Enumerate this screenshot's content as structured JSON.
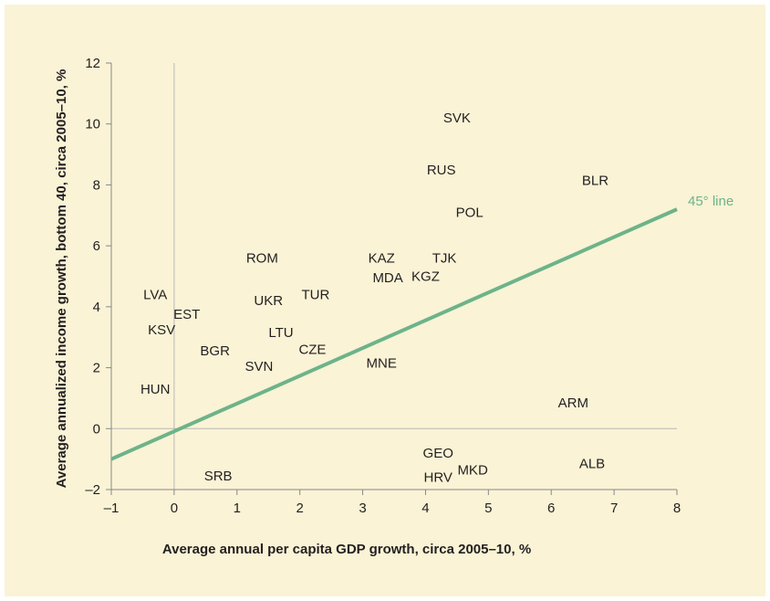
{
  "chart_data": {
    "type": "scatter",
    "xlabel": "Average annual per capita GDP growth, circa 2005–10, %",
    "ylabel": "Average annualized income growth, bottom 40, circa 2005–10, %",
    "xlim": [
      -1,
      8
    ],
    "ylim": [
      -2,
      12
    ],
    "x_ticks": [
      {
        "value": -1,
        "label": "–1"
      },
      {
        "value": 0,
        "label": "0"
      },
      {
        "value": 1,
        "label": "1"
      },
      {
        "value": 2,
        "label": "2"
      },
      {
        "value": 3,
        "label": "3"
      },
      {
        "value": 4,
        "label": "4"
      },
      {
        "value": 5,
        "label": "5"
      },
      {
        "value": 6,
        "label": "6"
      },
      {
        "value": 7,
        "label": "7"
      },
      {
        "value": 8,
        "label": "8"
      }
    ],
    "y_ticks": [
      {
        "value": -2,
        "label": "–2"
      },
      {
        "value": 0,
        "label": "0"
      },
      {
        "value": 2,
        "label": "2"
      },
      {
        "value": 4,
        "label": "4"
      },
      {
        "value": 6,
        "label": "6"
      },
      {
        "value": 8,
        "label": "8"
      },
      {
        "value": 10,
        "label": "10"
      },
      {
        "value": 12,
        "label": "12"
      }
    ],
    "points": [
      {
        "label": "SVK",
        "x": 4.5,
        "y": 10.2
      },
      {
        "label": "RUS",
        "x": 4.25,
        "y": 8.5
      },
      {
        "label": "BLR",
        "x": 6.7,
        "y": 8.15
      },
      {
        "label": "POL",
        "x": 4.7,
        "y": 7.1
      },
      {
        "label": "ROM",
        "x": 1.4,
        "y": 5.6
      },
      {
        "label": "KAZ",
        "x": 3.3,
        "y": 5.6
      },
      {
        "label": "TJK",
        "x": 4.3,
        "y": 5.6
      },
      {
        "label": "MDA",
        "x": 3.4,
        "y": 4.95
      },
      {
        "label": "KGZ",
        "x": 4.0,
        "y": 5.0
      },
      {
        "label": "LVA",
        "x": -0.3,
        "y": 4.4
      },
      {
        "label": "UKR",
        "x": 1.5,
        "y": 4.2
      },
      {
        "label": "TUR",
        "x": 2.25,
        "y": 4.4
      },
      {
        "label": "EST",
        "x": 0.2,
        "y": 3.75
      },
      {
        "label": "KSV",
        "x": -0.2,
        "y": 3.25
      },
      {
        "label": "LTU",
        "x": 1.7,
        "y": 3.15
      },
      {
        "label": "BGR",
        "x": 0.65,
        "y": 2.55
      },
      {
        "label": "CZE",
        "x": 2.2,
        "y": 2.6
      },
      {
        "label": "SVN",
        "x": 1.35,
        "y": 2.05
      },
      {
        "label": "MNE",
        "x": 3.3,
        "y": 2.15
      },
      {
        "label": "HUN",
        "x": -0.3,
        "y": 1.3
      },
      {
        "label": "ARM",
        "x": 6.35,
        "y": 0.85
      },
      {
        "label": "GEO",
        "x": 4.2,
        "y": -0.8
      },
      {
        "label": "ALB",
        "x": 6.65,
        "y": -1.15
      },
      {
        "label": "MKD",
        "x": 4.75,
        "y": -1.35
      },
      {
        "label": "HRV",
        "x": 4.2,
        "y": -1.6
      },
      {
        "label": "SRB",
        "x": 0.7,
        "y": -1.55
      }
    ],
    "reference_line": {
      "label": "45° line",
      "x": [
        -1,
        8
      ],
      "y": [
        -1,
        7.2
      ]
    },
    "grid": false,
    "colors": {
      "reference_line": "#6db38a",
      "text": "#231f20",
      "axes": "#888888",
      "background": "#faf3d6"
    }
  }
}
